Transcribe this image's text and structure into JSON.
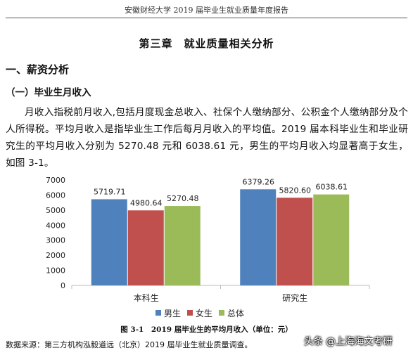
{
  "running_header": "安徽财经大学 2019 届毕业生就业质量年度报告",
  "chapter_title": "第三章　就业质量相关分析",
  "section_heading": "一、薪资分析",
  "subsection_heading": "（一）毕业生月收入",
  "paragraph": "月收入指税前月收入,包括月度现金总收入、社保个人缴纳部分、公积金个人缴纳部分及个人所得税。平均月收入是指毕业生工作后每月月收入的平均值。2019 届本科毕业生和毕业研究生的平均月收入分别为 5270.48 元和 6038.61 元，男生的平均月收入均显著高于女生，如图 3-1。",
  "chart_data": {
    "type": "bar",
    "title": "",
    "xlabel": "",
    "ylabel": "",
    "categories": [
      "本科生",
      "研究生"
    ],
    "series": [
      {
        "name": "男生",
        "color": "#4f81bd",
        "values": [
          5719.71,
          6379.26
        ],
        "labels": [
          "5719.71",
          "6379.26"
        ]
      },
      {
        "name": "女生",
        "color": "#c0504d",
        "values": [
          4980.64,
          5820.6
        ],
        "labels": [
          "4980.64",
          "5820.60"
        ]
      },
      {
        "name": "总体",
        "color": "#9bbb59",
        "values": [
          5270.48,
          6038.61
        ],
        "labels": [
          "5270.48",
          "6038.61"
        ]
      }
    ],
    "ylim": [
      0,
      7000
    ],
    "yticks": [
      0,
      1000,
      2000,
      3000,
      4000,
      5000,
      6000,
      7000
    ],
    "grid": false,
    "legend_position": "bottom"
  },
  "figure_caption": "图 3-1　2019 届毕业生的平均月收入（单位：元）",
  "source_note": "数据来源：第三方机构泓毅道远（北京）2019 届毕业生就业质量调查。",
  "watermark": "头条 @上海海文考研"
}
